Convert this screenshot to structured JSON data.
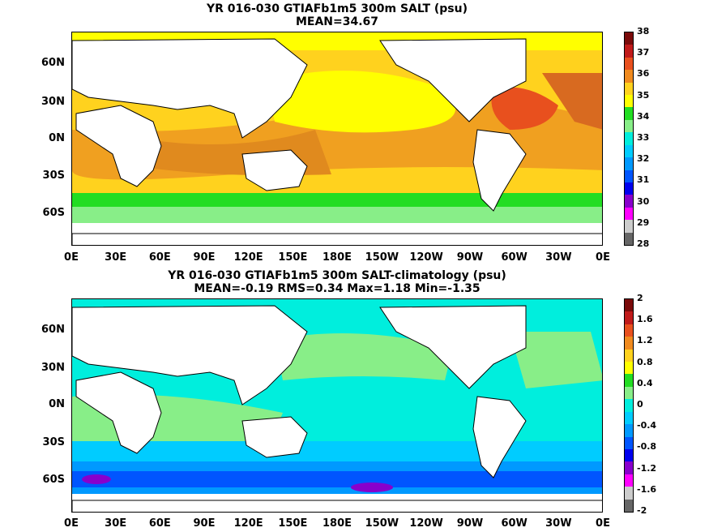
{
  "panel1": {
    "title1": "YR 016-030 GTIAFb1m5 300m SALT (psu)",
    "title2": "MEAN=34.67",
    "colorbar_labels": [
      "38",
      "37",
      "36",
      "35",
      "34",
      "33",
      "32",
      "31",
      "30",
      "29",
      "28"
    ],
    "colorbar_colors": [
      "#7a0a0a",
      "#c01a1a",
      "#e8501e",
      "#f08a1e",
      "#ffd21e",
      "#ffff00",
      "#22dd22",
      "#88ee88",
      "#00eedd",
      "#00ccff",
      "#0099ff",
      "#0055ff",
      "#0000ee",
      "#8800cc",
      "#ff00ff",
      "#cccccc",
      "#666666"
    ]
  },
  "panel2": {
    "title1": "YR 016-030 GTIAFb1m5 300m SALT-climatology (psu)",
    "title2": "MEAN=-0.19   RMS=0.34   Max=1.18   Min=-1.35",
    "colorbar_labels": [
      "2",
      "1.6",
      "1.2",
      "0.8",
      "0.4",
      "0",
      "-0.4",
      "-0.8",
      "-1.2",
      "-1.6",
      "-2"
    ],
    "colorbar_colors": [
      "#7a0a0a",
      "#c01a1a",
      "#e8501e",
      "#f08a1e",
      "#ffd21e",
      "#ffff00",
      "#22dd22",
      "#88ee88",
      "#00eedd",
      "#00ccff",
      "#0099ff",
      "#0055ff",
      "#0000ee",
      "#8800cc",
      "#ff00ff",
      "#cccccc",
      "#666666"
    ]
  },
  "axes": {
    "lat_labels": [
      "60N",
      "30N",
      "0N",
      "30S",
      "60S"
    ],
    "lon_labels": [
      "0E",
      "30E",
      "60E",
      "90E",
      "120E",
      "150E",
      "180E",
      "150W",
      "120W",
      "90W",
      "60W",
      "30W",
      "0E"
    ]
  }
}
